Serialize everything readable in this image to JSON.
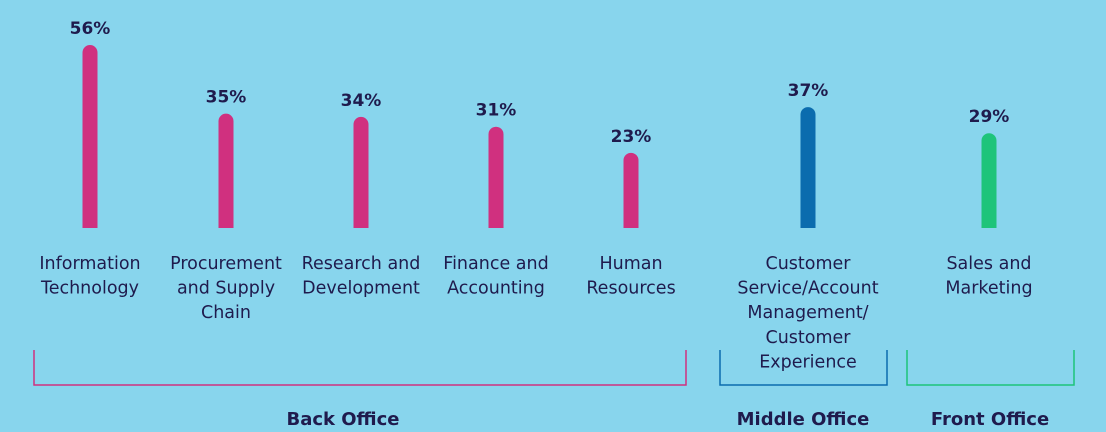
{
  "chart_data": {
    "type": "bar",
    "categories": [
      "Information Technology",
      "Procurement and Supply Chain",
      "Research and Development",
      "Finance and Accounting",
      "Human Resources",
      "Customer Service/Account Management/ Customer Experience",
      "Sales and Marketing"
    ],
    "category_lines": [
      [
        "Information",
        "Technology"
      ],
      [
        "Procurement",
        "and Supply",
        "Chain"
      ],
      [
        "Research and",
        "Development"
      ],
      [
        "Finance and",
        "Accounting"
      ],
      [
        "Human",
        "Resources"
      ],
      [
        "Customer",
        "Service/Account",
        "Management/",
        "Customer",
        "Experience"
      ],
      [
        "Sales and",
        "Marketing"
      ]
    ],
    "values": [
      56,
      35,
      34,
      31,
      23,
      37,
      29
    ],
    "value_labels": [
      "56%",
      "35%",
      "34%",
      "31%",
      "23%",
      "37%",
      "29%"
    ],
    "bar_group": [
      0,
      0,
      0,
      0,
      0,
      1,
      2
    ],
    "ylim": [
      0,
      56
    ],
    "grid": false,
    "groups": [
      {
        "name": "Back Office",
        "color": "#d0307f"
      },
      {
        "name": "Middle Office",
        "color": "#0b6cae"
      },
      {
        "name": "Front Office",
        "color": "#1ec47a"
      }
    ],
    "text_color": "#1f1b4d",
    "background": "#88d5ed"
  }
}
